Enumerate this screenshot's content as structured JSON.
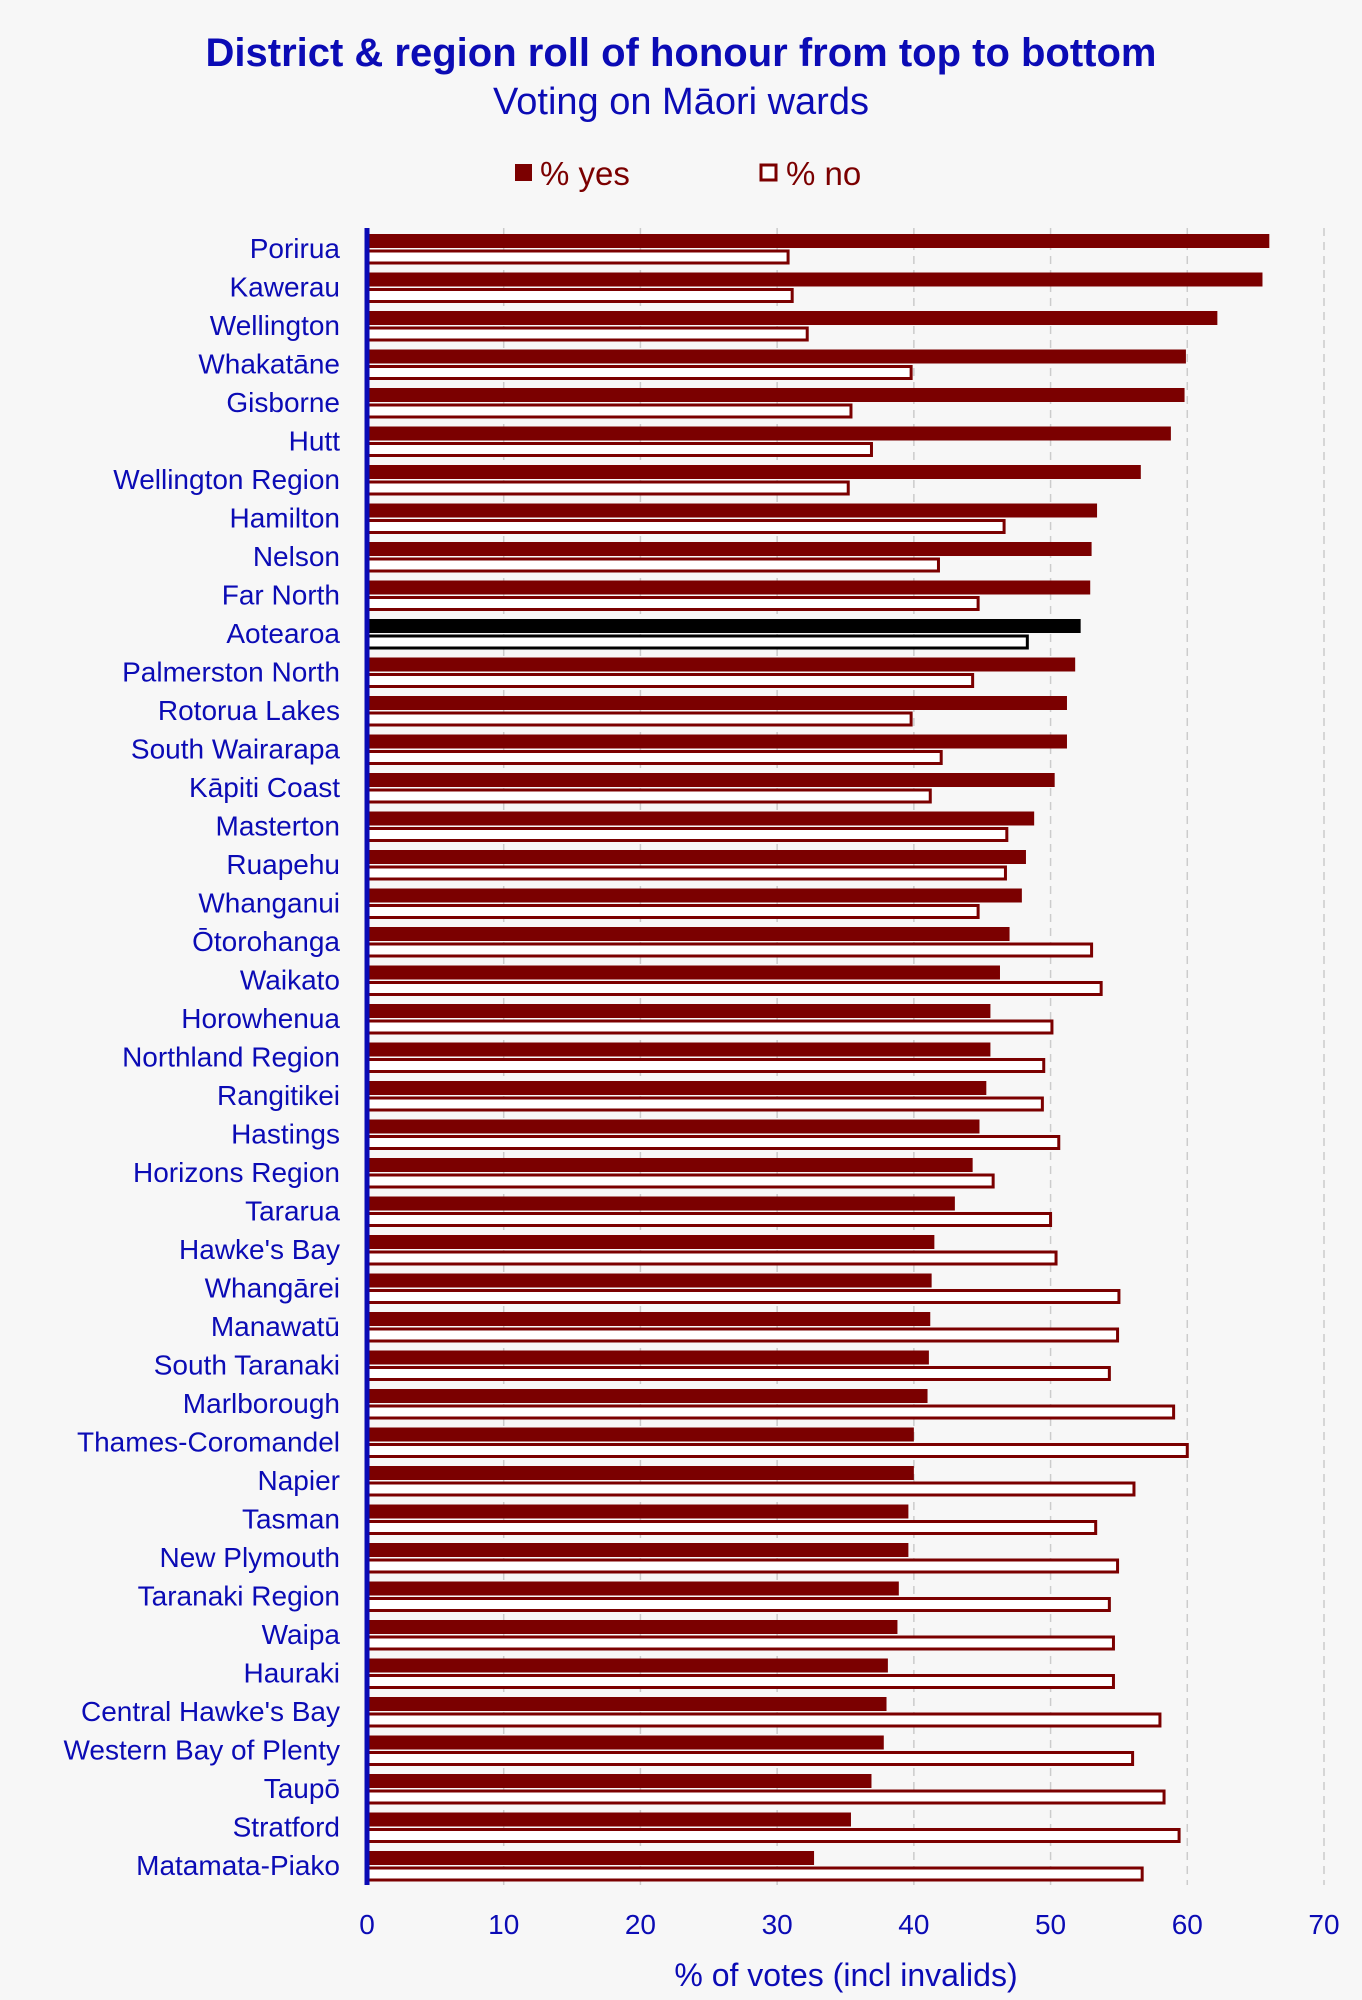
{
  "chart_data": {
    "type": "bar",
    "orientation": "horizontal",
    "title": "District & region roll of honour from top to bottom",
    "subtitle": "Voting on Māori wards",
    "xlabel": "% of votes (incl invalids)",
    "xlim": [
      0,
      70
    ],
    "xticks": [
      "0",
      "10",
      "20",
      "30",
      "40",
      "50",
      "60",
      "70"
    ],
    "grid": "vertical-dashed",
    "legend_position": "top",
    "highlight_category": "Aotearoa",
    "colors": {
      "yes": "#7b0000",
      "no_fill": "#ffffff",
      "no_stroke": "#7b0000",
      "highlight": "#000000",
      "axis": "#0b0bb5",
      "grid": "#cccccc"
    },
    "categories": [
      "Porirua",
      "Kawerau",
      "Wellington",
      "Whakatāne",
      "Gisborne",
      "Hutt",
      "Wellington Region",
      "Hamilton",
      "Nelson",
      "Far North",
      "Aotearoa",
      "Palmerston North",
      "Rotorua Lakes",
      "South Wairarapa",
      "Kāpiti Coast",
      "Masterton",
      "Ruapehu",
      "Whanganui",
      "Ōtorohanga",
      "Waikato",
      "Horowhenua",
      "Northland Region",
      "Rangitikei",
      "Hastings",
      "Horizons Region",
      "Tararua",
      "Hawke's Bay",
      "Whangārei",
      "Manawatū",
      "South Taranaki",
      "Marlborough",
      "Thames-Coromandel",
      "Napier",
      "Tasman",
      "New Plymouth",
      "Taranaki Region",
      "Waipa",
      "Hauraki",
      "Central Hawke's Bay",
      "Western Bay of Plenty",
      "Taupō",
      "Stratford",
      "Matamata-Piako"
    ],
    "series": [
      {
        "name": "% yes",
        "values": [
          66.0,
          65.5,
          62.2,
          59.9,
          59.8,
          58.8,
          56.6,
          53.4,
          53.0,
          52.9,
          52.2,
          51.8,
          51.2,
          51.2,
          50.3,
          48.8,
          48.2,
          47.9,
          47.0,
          46.3,
          45.6,
          45.6,
          45.3,
          44.8,
          44.3,
          43.0,
          41.5,
          41.3,
          41.2,
          41.1,
          41.0,
          40.0,
          40.0,
          39.6,
          39.6,
          38.9,
          38.8,
          38.1,
          38.0,
          37.8,
          36.9,
          35.4,
          32.7
        ]
      },
      {
        "name": "% no",
        "values": [
          30.8,
          31.1,
          32.2,
          39.8,
          35.4,
          36.9,
          35.2,
          46.6,
          41.8,
          44.7,
          48.3,
          44.3,
          39.8,
          42.0,
          41.2,
          46.8,
          46.7,
          44.7,
          53.0,
          53.7,
          50.1,
          49.5,
          49.4,
          50.6,
          45.8,
          50.0,
          50.4,
          55.0,
          54.9,
          54.3,
          59.0,
          60.0,
          56.1,
          53.3,
          54.9,
          54.3,
          54.6,
          54.6,
          58.0,
          56.0,
          58.3,
          59.4,
          56.7
        ]
      }
    ]
  }
}
